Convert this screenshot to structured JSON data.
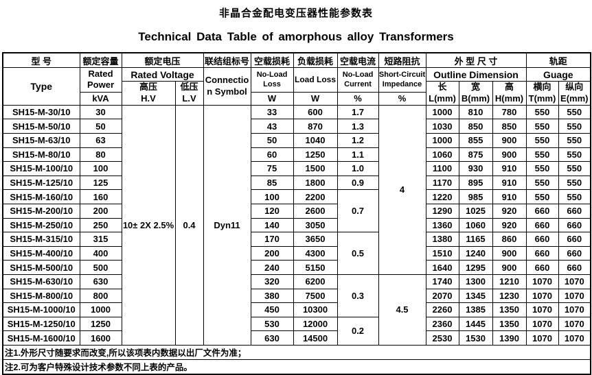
{
  "page": {
    "title_zh": "非晶合金配电变压器性能参数表",
    "title_en": "Technical Data Table of amorphous alloy Transformers"
  },
  "header": {
    "col_type": {
      "zh": "型  号",
      "en": "Type"
    },
    "col_power": {
      "zh": "额定容量",
      "en1": "Rated",
      "en2": "Power",
      "unit": "kVA"
    },
    "col_voltage": {
      "zh": "额定电压",
      "en": "Rated Voltage",
      "hv_zh": "高压",
      "hv_en": "H.V",
      "lv_zh": "低压",
      "lv_en": "L.V"
    },
    "col_connection": {
      "zh": "联结组标号",
      "en1": "Connectio",
      "en2": "n Symbol"
    },
    "col_noload_loss": {
      "zh": "空载损耗",
      "en1": "No-Load",
      "en2": "Loss",
      "unit": "W"
    },
    "col_load_loss": {
      "zh": "负载损耗",
      "en": "Load Loss",
      "unit": "W"
    },
    "col_noload_curr": {
      "zh": "空载电流",
      "en1": "No-Load",
      "en2": "Current",
      "unit": "%"
    },
    "col_impedance": {
      "zh": "短路阻抗",
      "en1": "Short-Circuit",
      "en2": "Impedance",
      "unit": "%"
    },
    "col_outline": {
      "zh": "外 型 尺 寸",
      "en": "Outline Dimension",
      "l_zh": "长",
      "l_en": "L(mm)",
      "b_zh": "宽",
      "b_en": "B(mm)",
      "h_zh": "高",
      "h_en": "H(mm)"
    },
    "col_guage": {
      "zh": "轨距",
      "en": "Guage",
      "t_zh": "横向",
      "t_en": "T(mm)",
      "e_zh": "纵向",
      "e_en": "E(mm)"
    }
  },
  "table": {
    "rows": [
      [
        "SH15-M-30/10",
        "30",
        {
          "v": "10± 2X 2.5%",
          "rs": 17
        },
        {
          "v": "0.4",
          "rs": 17
        },
        {
          "v": "Dyn11",
          "rs": 17
        },
        "33",
        "600",
        "1.7",
        {
          "v": "4",
          "rs": 12
        },
        "1000",
        "810",
        "780",
        "550",
        "550"
      ],
      [
        "SH15-M-50/10",
        "50",
        "43",
        "870",
        "1.3",
        "1030",
        "850",
        "850",
        "550",
        "550"
      ],
      [
        "SH15-M-63/10",
        "63",
        "50",
        "1040",
        "1.2",
        "1000",
        "855",
        "900",
        "550",
        "550"
      ],
      [
        "SH15-M-80/10",
        "80",
        "60",
        "1250",
        "1.1",
        "1060",
        "875",
        "900",
        "550",
        "550"
      ],
      [
        "SH15-M-100/10",
        "100",
        "75",
        "1500",
        "1.0",
        "1100",
        "930",
        "910",
        "550",
        "550"
      ],
      [
        "SH15-M-125/10",
        "125",
        "85",
        "1800",
        "0.9",
        "1170",
        "895",
        "910",
        "550",
        "550"
      ],
      [
        "SH15-M-160/10",
        "160",
        "100",
        "2200",
        {
          "v": "0.7",
          "rs": 3
        },
        "1220",
        "985",
        "910",
        "550",
        "550"
      ],
      [
        "SH15-M-200/10",
        "200",
        "120",
        "2600",
        "1290",
        "1025",
        "920",
        "660",
        "660"
      ],
      [
        "SH15-M-250/10",
        "250",
        "140",
        "3050",
        "1360",
        "1060",
        "920",
        "660",
        "660"
      ],
      [
        "SH15-M-315/10",
        "315",
        "170",
        "3650",
        {
          "v": "0.5",
          "rs": 3
        },
        "1380",
        "1165",
        "860",
        "660",
        "660"
      ],
      [
        "SH15-M-400/10",
        "400",
        "200",
        "4300",
        "1510",
        "1240",
        "900",
        "660",
        "660"
      ],
      [
        "SH15-M-500/10",
        "500",
        "240",
        "5150",
        "1640",
        "1295",
        "900",
        "660",
        "660"
      ],
      [
        "SH15-M-630/10",
        "630",
        "320",
        "6200",
        {
          "v": "0.3",
          "rs": 3
        },
        {
          "v": "4.5",
          "rs": 5
        },
        "1740",
        "1300",
        "1210",
        "1070",
        "1070"
      ],
      [
        "SH15-M-800/10",
        "800",
        "380",
        "7500",
        "2070",
        "1345",
        "1230",
        "1070",
        "1070"
      ],
      [
        "SH15-M-1000/10",
        "1000",
        "450",
        "10300",
        "2260",
        "1385",
        "1350",
        "1070",
        "1070"
      ],
      [
        "SH15-M-1250/10",
        "1250",
        "530",
        "12000",
        {
          "v": "0.2",
          "rs": 2
        },
        "2360",
        "1445",
        "1350",
        "1070",
        "1070"
      ],
      [
        "SH15-M-1600/10",
        "1600",
        "630",
        "14500",
        "2530",
        "1530",
        "1390",
        "1070",
        "1070"
      ]
    ]
  },
  "notes": {
    "note1": "注1.外形尺寸随要求而改变,所以该项表内数据以出厂文件为准；",
    "note2": "注2.可为客户特殊设计技术参数不同上表的产品。"
  }
}
